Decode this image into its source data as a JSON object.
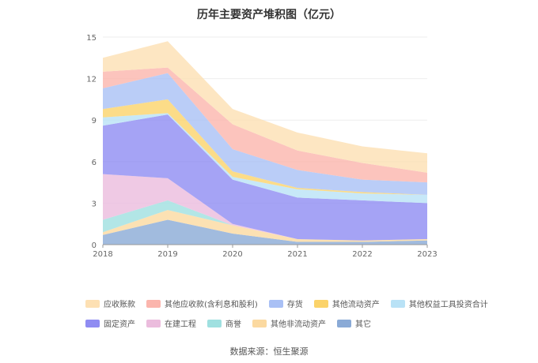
{
  "chart_data": {
    "type": "area",
    "stacked": true,
    "title": "历年主要资产堆积图（亿元）",
    "x": [
      "2018",
      "2019",
      "2020",
      "2021",
      "2022",
      "2023"
    ],
    "ylim": [
      0,
      15
    ],
    "yticks": [
      0,
      3,
      6,
      9,
      12,
      15
    ],
    "grid": true,
    "legend_position": "bottom",
    "series": [
      {
        "name": "其它",
        "color": "#8aaad6",
        "values": [
          0.7,
          1.8,
          0.8,
          0.2,
          0.2,
          0.3
        ]
      },
      {
        "name": "其他非流动资产",
        "color": "#fbd9a0",
        "values": [
          0.2,
          0.7,
          0.6,
          0.2,
          0.1,
          0.1
        ]
      },
      {
        "name": "商誉",
        "color": "#9fe0e0",
        "values": [
          0.9,
          0.7,
          0.0,
          0.0,
          0.0,
          0.0
        ]
      },
      {
        "name": "在建工程",
        "color": "#ebbcdd",
        "values": [
          3.3,
          1.6,
          0.1,
          0.0,
          0.0,
          0.0
        ]
      },
      {
        "name": "固定资产",
        "color": "#8f8cf2",
        "values": [
          3.5,
          4.6,
          3.2,
          3.0,
          2.9,
          2.6
        ]
      },
      {
        "name": "其他权益工具投资合计",
        "color": "#b9e2f6",
        "values": [
          0.6,
          0.1,
          0.2,
          0.6,
          0.5,
          0.6
        ]
      },
      {
        "name": "其他流动资产",
        "color": "#fbd36a",
        "values": [
          0.6,
          1.0,
          0.4,
          0.1,
          0.1,
          0.0
        ]
      },
      {
        "name": "存货",
        "color": "#a9c0f5",
        "values": [
          1.5,
          1.9,
          1.6,
          1.3,
          0.9,
          0.9
        ]
      },
      {
        "name": "其他应收款(含利息和股利)",
        "color": "#fbb5ad",
        "values": [
          1.2,
          0.4,
          1.8,
          1.4,
          1.2,
          0.7
        ]
      },
      {
        "name": "应收账款",
        "color": "#fde0b3",
        "values": [
          1.0,
          1.9,
          1.1,
          1.3,
          1.2,
          1.4
        ]
      }
    ],
    "legend_order": [
      "应收账款",
      "其他应收款(含利息和股利)",
      "存货",
      "其他流动资产",
      "其他权益工具投资合计",
      "固定资产",
      "在建工程",
      "商誉",
      "其他非流动资产",
      "其它"
    ]
  },
  "source": "数据来源：恒生聚源"
}
